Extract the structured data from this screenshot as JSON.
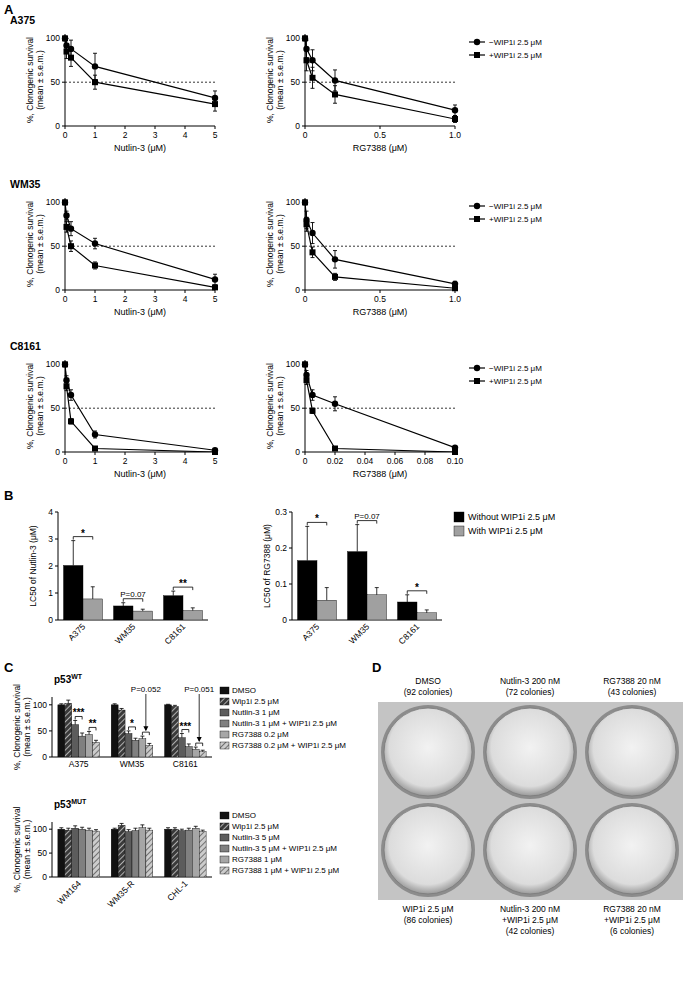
{
  "panels": [
    "A",
    "B",
    "C",
    "D"
  ],
  "chart_data": [
    {
      "type": "line",
      "title": "A375",
      "x": [
        0,
        0.05,
        0.2,
        1,
        5
      ],
      "xlim": [
        0,
        5
      ],
      "xticks": [
        0,
        1,
        2,
        3,
        4,
        5
      ],
      "ylim": [
        0,
        105
      ],
      "yticks": [
        0,
        50,
        100
      ],
      "x_label": "Nutlin-3 (μM)",
      "y_label": [
        "%, Clonogenic survival",
        "(mean ± s.e.m.)"
      ],
      "threshold": 50,
      "series": [
        {
          "color": "#000000",
          "marker": "circle",
          "values": [
            100,
            92,
            88,
            68,
            32
          ],
          "errors": [
            0,
            8,
            10,
            15,
            8
          ]
        },
        {
          "color": "#000000",
          "marker": "square",
          "values": [
            100,
            85,
            78,
            50,
            25
          ],
          "errors": [
            0,
            8,
            10,
            8,
            8
          ]
        }
      ]
    },
    {
      "type": "line",
      "x": [
        0,
        0.01,
        0.05,
        0.2,
        1
      ],
      "xlim": [
        0,
        1
      ],
      "xticks": [
        0,
        0.5,
        {
          "value": 1,
          "label": "1.0"
        }
      ],
      "ylim": [
        0,
        105
      ],
      "yticks": [
        0,
        50,
        100
      ],
      "x_label": "RG7388 (μM)",
      "y_label": [
        "%, Clonogenic survival",
        "(mean ± s.e.m.)"
      ],
      "threshold": 50,
      "legend": "right",
      "series": [
        {
          "name": "−WIP1i 2.5 μM",
          "color": "#000000",
          "marker": "circle",
          "values": [
            100,
            88,
            75,
            52,
            18
          ],
          "errors": [
            0,
            10,
            12,
            12,
            6
          ]
        },
        {
          "name": "+WIP1i 2.5 μM",
          "color": "#000000",
          "marker": "square",
          "values": [
            100,
            75,
            55,
            36,
            8
          ],
          "errors": [
            0,
            12,
            12,
            10,
            4
          ]
        }
      ]
    },
    {
      "type": "line",
      "title": "WM35",
      "x": [
        0,
        0.05,
        0.2,
        1,
        5
      ],
      "xlim": [
        0,
        5
      ],
      "xticks": [
        0,
        1,
        2,
        3,
        4,
        5
      ],
      "ylim": [
        0,
        105
      ],
      "yticks": [
        0,
        50,
        100
      ],
      "x_label": "Nutlin-3 (μM)",
      "y_label": [
        "%, Clonogenic survival",
        "(mean ± s.e.m.)"
      ],
      "threshold": 50,
      "series": [
        {
          "color": "#000000",
          "marker": "circle",
          "values": [
            100,
            85,
            70,
            53,
            12
          ],
          "errors": [
            0,
            5,
            8,
            6,
            6
          ]
        },
        {
          "color": "#000000",
          "marker": "square",
          "values": [
            100,
            72,
            50,
            28,
            3
          ],
          "errors": [
            0,
            6,
            6,
            4,
            2
          ]
        }
      ]
    },
    {
      "type": "line",
      "x": [
        0,
        0.01,
        0.05,
        0.2,
        1
      ],
      "xlim": [
        0,
        1
      ],
      "xticks": [
        0,
        0.5,
        {
          "value": 1,
          "label": "1.0"
        }
      ],
      "ylim": [
        0,
        105
      ],
      "yticks": [
        0,
        50,
        100
      ],
      "x_label": "RG7388 (μM)",
      "y_label": [
        "%, Clonogenic survival",
        "(mean ± s.e.m.)"
      ],
      "threshold": 50,
      "legend": "right",
      "series": [
        {
          "name": "−WIP1i 2.5 μM",
          "color": "#000000",
          "marker": "circle",
          "values": [
            100,
            80,
            65,
            35,
            7
          ],
          "errors": [
            0,
            10,
            12,
            10,
            3
          ]
        },
        {
          "name": "+WIP1i 2.5 μM",
          "color": "#000000",
          "marker": "square",
          "values": [
            100,
            75,
            43,
            15,
            2
          ],
          "errors": [
            0,
            8,
            6,
            4,
            1
          ]
        }
      ]
    },
    {
      "type": "line",
      "title": "C8161",
      "x": [
        0,
        0.05,
        0.2,
        1,
        5
      ],
      "xlim": [
        0,
        5
      ],
      "xticks": [
        0,
        1,
        2,
        3,
        4,
        5
      ],
      "ylim": [
        0,
        105
      ],
      "yticks": [
        0,
        50,
        100
      ],
      "x_label": "Nutlin-3 (μM)",
      "y_label": [
        "%, Clonogenic survival",
        "(mean ± s.e.m.)"
      ],
      "threshold": 50,
      "series": [
        {
          "color": "#000000",
          "marker": "circle",
          "values": [
            100,
            82,
            65,
            20,
            2
          ],
          "errors": [
            0,
            5,
            6,
            4,
            1
          ]
        },
        {
          "color": "#000000",
          "marker": "square",
          "values": [
            100,
            75,
            35,
            4,
            0
          ],
          "errors": [
            0,
            5,
            3,
            1,
            0
          ]
        }
      ]
    },
    {
      "type": "line",
      "x": [
        0,
        0.001,
        0.005,
        0.02,
        0.1
      ],
      "xlim": [
        0,
        0.1
      ],
      "xticks": [
        0,
        0.02,
        0.04,
        0.06,
        0.08,
        {
          "value": 0.1,
          "label": "0.10"
        }
      ],
      "ylim": [
        0,
        105
      ],
      "yticks": [
        0,
        50,
        100
      ],
      "x_label": "RG7388 (μM)",
      "y_label": [
        "%, Clonogenic survival",
        "(mean ± s.e.m.)"
      ],
      "threshold": 50,
      "legend": "right",
      "series": [
        {
          "name": "−WIP1i 2.5 μM",
          "color": "#000000",
          "marker": "circle",
          "values": [
            100,
            88,
            65,
            55,
            5
          ],
          "errors": [
            0,
            5,
            6,
            8,
            2
          ]
        },
        {
          "name": "+WIP1i 2.5 μM",
          "color": "#000000",
          "marker": "square",
          "values": [
            100,
            82,
            47,
            4,
            0
          ],
          "errors": [
            0,
            5,
            3,
            1,
            0
          ]
        }
      ]
    },
    {
      "type": "bar",
      "categories": [
        "A375",
        "WM35",
        "C8161"
      ],
      "ylim": [
        0,
        4
      ],
      "yticks": [
        0,
        1,
        2,
        3,
        4
      ],
      "y_label": "LC50 of Nutlin-3 (μM)",
      "series": [
        {
          "color": "#000000",
          "values": [
            2.02,
            0.52,
            0.9
          ],
          "errors": [
            0.92,
            0.12,
            0.17
          ]
        },
        {
          "color": "#a0a0a0",
          "values": [
            0.78,
            0.33,
            0.35
          ],
          "errors": [
            0.45,
            0.07,
            0.1
          ]
        }
      ],
      "annotations": [
        {
          "text": "*",
          "category": 0,
          "series": [
            0,
            1
          ]
        },
        {
          "text": "P=0.07",
          "category": 1,
          "series": [
            0,
            1
          ]
        },
        {
          "text": "**",
          "category": 2,
          "series": [
            0,
            1
          ]
        }
      ]
    },
    {
      "type": "bar",
      "categories": [
        "A375",
        "WM35",
        "C8161"
      ],
      "ylim": [
        0,
        0.3
      ],
      "yticks": [
        0,
        0.1,
        0.2,
        0.3
      ],
      "y_label": "LC50 of RG7388 (μM)",
      "legend": "right",
      "series": [
        {
          "name": "Without WIP1i 2.5 μM",
          "color": "#000000",
          "values": [
            0.165,
            0.19,
            0.05
          ],
          "errors": [
            0.095,
            0.075,
            0.02
          ]
        },
        {
          "name": "With WIP1i 2.5 μM",
          "color": "#a0a0a0",
          "values": [
            0.055,
            0.07,
            0.02
          ],
          "errors": [
            0.035,
            0.02,
            0.008
          ]
        }
      ],
      "annotations": [
        {
          "text": "*",
          "category": 0,
          "series": [
            0,
            1
          ]
        },
        {
          "text": "P=0.07",
          "category": 1,
          "series": [
            0,
            1
          ]
        },
        {
          "text": "*",
          "category": 2,
          "series": [
            0,
            1
          ]
        }
      ]
    },
    {
      "type": "bar",
      "title": "p53WT",
      "categories": [
        "A375",
        "WM35",
        "C8161"
      ],
      "ylim": [
        0,
        115
      ],
      "yticks": [
        0,
        50,
        100
      ],
      "y_label": [
        "%, Clonogenic survival",
        "(mean ± s.e.m.)"
      ],
      "legend": "right",
      "series": [
        {
          "name": "DMSO",
          "color": "#111111",
          "values": [
            100,
            100,
            100
          ],
          "errors": [
            2,
            2,
            1
          ]
        },
        {
          "name": "Wip1i 2.5 μM",
          "color": "#3a3a3a",
          "line_style": "hatched",
          "values": [
            103,
            90,
            97
          ],
          "errors": [
            6,
            3,
            2
          ]
        },
        {
          "name": "Nutlin-3 1 μM",
          "color": "#5c5c5c",
          "values": [
            62,
            45,
            37
          ],
          "errors": [
            8,
            5,
            8
          ]
        },
        {
          "name": "Nutlin-3 1 μM + WIP1i 2.5 μM",
          "color": "#808080",
          "values": [
            40,
            32,
            20
          ],
          "errors": [
            6,
            4,
            5
          ]
        },
        {
          "name": "RG7388 0.2 μM",
          "color": "#a6a6a6",
          "values": [
            43,
            35,
            15
          ],
          "errors": [
            6,
            5,
            4
          ]
        },
        {
          "name": "RG7388 0.2 μM + WIP1i 2.5 μM",
          "color": "#cccccc",
          "line_style": "hatched",
          "values": [
            28,
            22,
            10
          ],
          "errors": [
            4,
            4,
            3
          ]
        }
      ],
      "annotations": [
        {
          "text": "***",
          "category": 0,
          "series": [
            2,
            3
          ]
        },
        {
          "text": "**",
          "category": 0,
          "series": [
            4,
            5
          ]
        },
        {
          "text": "*",
          "category": 1,
          "series": [
            2,
            3
          ]
        },
        {
          "text": "P=0.052",
          "category": 1,
          "series": [
            4,
            5
          ]
        },
        {
          "text": "***",
          "category": 2,
          "series": [
            2,
            3
          ]
        },
        {
          "text": "P=0.051",
          "category": 2,
          "series": [
            4,
            5
          ]
        }
      ]
    },
    {
      "type": "bar",
      "title": "p53MUT",
      "categories": [
        "WM164",
        "WM35-R",
        "CHL-1"
      ],
      "ylim": [
        0,
        115
      ],
      "yticks": [
        0,
        50,
        100
      ],
      "y_label": [
        "%, Clonogenic survival",
        "(mean ± s.e.m.)"
      ],
      "legend": "right",
      "series": [
        {
          "name": "DMSO",
          "color": "#111111",
          "values": [
            100,
            100,
            100
          ],
          "errors": [
            3,
            2,
            3
          ]
        },
        {
          "name": "Wip1i 2.5 μM",
          "color": "#3a3a3a",
          "line_style": "hatched",
          "values": [
            98,
            108,
            100
          ],
          "errors": [
            4,
            4,
            3
          ]
        },
        {
          "name": "Nutlin-3 5 μM",
          "color": "#5c5c5c",
          "values": [
            102,
            95,
            97
          ],
          "errors": [
            5,
            4,
            3
          ]
        },
        {
          "name": "Nutlin-3 5 μM + WIP1i 2.5 μM",
          "color": "#808080",
          "values": [
            100,
            97,
            98
          ],
          "errors": [
            4,
            5,
            4
          ]
        },
        {
          "name": "RG7388 1 μM",
          "color": "#a6a6a6",
          "values": [
            98,
            103,
            102
          ],
          "errors": [
            4,
            6,
            4
          ]
        },
        {
          "name": "RG7388 1 μM + WIP1i 2.5 μM",
          "color": "#cccccc",
          "line_style": "hatched",
          "values": [
            96,
            98,
            95
          ],
          "errors": [
            3,
            4,
            3
          ]
        }
      ]
    }
  ],
  "colony_plates": {
    "top_labels": [
      [
        "DMSO",
        "(92 colonies)"
      ],
      [
        "Nutlin-3 200 nM",
        "(72 colonies)"
      ],
      [
        "RG7388 20 nM",
        "(43 colonies)"
      ]
    ],
    "bottom_labels": [
      [
        "WIP1i 2.5 μM",
        "(86 colonies)"
      ],
      [
        "Nutlin-3 200 nM",
        "+WIP1i 2.5 μM",
        "(42 colonies)"
      ],
      [
        "RG7388 20 nM",
        "+WIP1i 2.5 μM",
        "(6 colonies)"
      ]
    ]
  }
}
